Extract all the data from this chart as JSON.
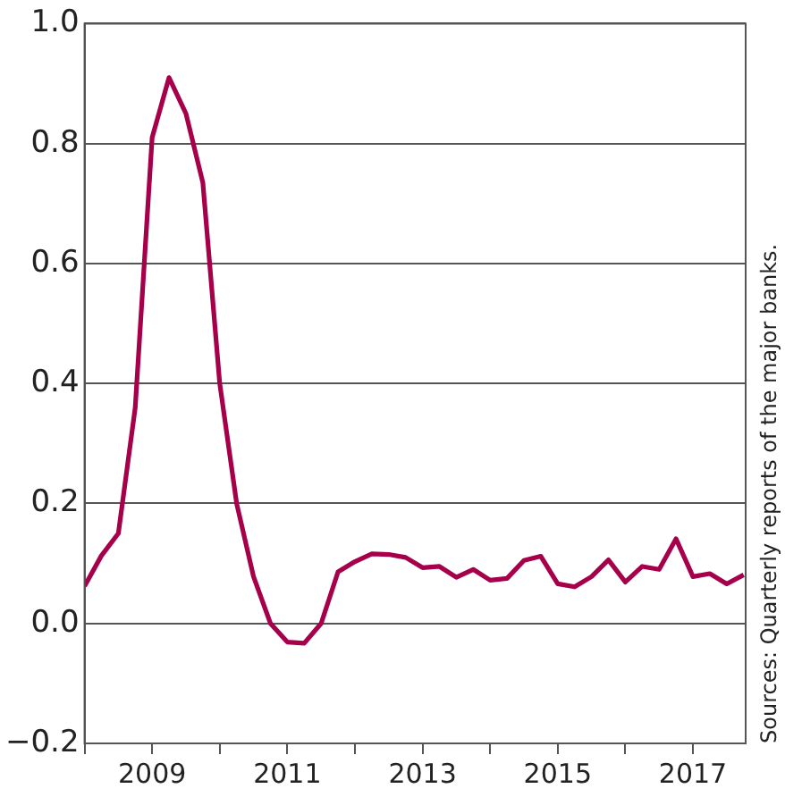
{
  "chart_data": {
    "type": "line",
    "x": [
      2008,
      2008.25,
      2008.5,
      2008.75,
      2009,
      2009.25,
      2009.5,
      2009.75,
      2010,
      2010.25,
      2010.5,
      2010.75,
      2011,
      2011.25,
      2011.5,
      2011.75,
      2012,
      2012.25,
      2012.5,
      2012.75,
      2013,
      2013.25,
      2013.5,
      2013.75,
      2014,
      2014.25,
      2014.5,
      2014.75,
      2015,
      2015.25,
      2015.5,
      2015.75,
      2016,
      2016.25,
      2016.5,
      2016.75,
      2017,
      2017.25,
      2017.5,
      2017.75
    ],
    "series": [
      {
        "color": "#a6004a",
        "values": [
          0.062,
          0.113,
          0.15,
          0.36,
          0.81,
          0.91,
          0.85,
          0.735,
          0.4,
          0.2,
          0.078,
          0.0,
          -0.031,
          -0.033,
          0.0,
          0.086,
          0.103,
          0.116,
          0.115,
          0.11,
          0.093,
          0.095,
          0.077,
          0.09,
          0.072,
          0.075,
          0.105,
          0.112,
          0.066,
          0.061,
          0.078,
          0.106,
          0.069,
          0.095,
          0.09,
          0.141,
          0.078,
          0.083,
          0.066,
          0.081
        ]
      }
    ],
    "xlim": [
      2008,
      2017.78
    ],
    "xticks": [
      {
        "value": 2008,
        "label": null
      },
      2009,
      {
        "value": 2010,
        "label": null
      },
      2011,
      {
        "value": 2012,
        "label": null
      },
      2013,
      {
        "value": 2014,
        "label": null
      },
      2015,
      {
        "value": 2016,
        "label": null
      },
      2017
    ],
    "ylim": [
      -0.2,
      1.0
    ],
    "yticks": [
      {
        "value": -0.2,
        "label": "−0.2"
      },
      {
        "value": 0,
        "label": "0.0"
      },
      {
        "value": 0.2,
        "label": "0.2"
      },
      {
        "value": 0.4,
        "label": "0.4"
      },
      {
        "value": 0.6,
        "label": "0.6"
      },
      {
        "value": 0.8,
        "label": "0.8"
      },
      {
        "value": 1.0,
        "label": "1.0"
      }
    ],
    "grid": "y",
    "legend": false,
    "marker": "none",
    "line_style": "solid",
    "annotations": [
      "Sources: Quarterly reports of the major banks."
    ]
  }
}
